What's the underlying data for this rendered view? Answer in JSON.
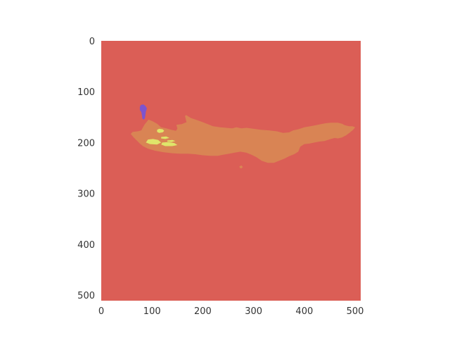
{
  "chart_data": {
    "type": "heatmap",
    "title": "",
    "xlabel": "",
    "ylabel": "",
    "xlim": [
      0,
      511
    ],
    "ylim": [
      511,
      0
    ],
    "grid": false,
    "x_ticks": [
      "0",
      "100",
      "200",
      "300",
      "400",
      "500"
    ],
    "y_ticks": [
      "0",
      "100",
      "200",
      "300",
      "400",
      "500"
    ],
    "x_tick_values": [
      0,
      100,
      200,
      300,
      400,
      500
    ],
    "y_tick_values": [
      0,
      100,
      200,
      300,
      400,
      500
    ],
    "background_class": {
      "label": "background",
      "color": "#db5e56"
    },
    "regions": [
      {
        "class": "main",
        "color": "#d98454",
        "polygon": [
          [
            58,
            183
          ],
          [
            62,
            179
          ],
          [
            72,
            178
          ],
          [
            79,
            176
          ],
          [
            85,
            165
          ],
          [
            93,
            155
          ],
          [
            101,
            158
          ],
          [
            110,
            163
          ],
          [
            118,
            170
          ],
          [
            128,
            172
          ],
          [
            138,
            175
          ],
          [
            147,
            177
          ],
          [
            150,
            173
          ],
          [
            148,
            165
          ],
          [
            158,
            164
          ],
          [
            168,
            160
          ],
          [
            165,
            148
          ],
          [
            167,
            146
          ],
          [
            177,
            152
          ],
          [
            186,
            155
          ],
          [
            200,
            160
          ],
          [
            210,
            164
          ],
          [
            220,
            168
          ],
          [
            234,
            170
          ],
          [
            246,
            171
          ],
          [
            258,
            172
          ],
          [
            266,
            170
          ],
          [
            276,
            172
          ],
          [
            286,
            171
          ],
          [
            300,
            173
          ],
          [
            315,
            175
          ],
          [
            330,
            176
          ],
          [
            346,
            178
          ],
          [
            358,
            181
          ],
          [
            370,
            180
          ],
          [
            378,
            176
          ],
          [
            388,
            174
          ],
          [
            400,
            170
          ],
          [
            412,
            168
          ],
          [
            422,
            166
          ],
          [
            432,
            164
          ],
          [
            442,
            162
          ],
          [
            452,
            161
          ],
          [
            466,
            161
          ],
          [
            474,
            163
          ],
          [
            480,
            166
          ],
          [
            488,
            168
          ],
          [
            495,
            168
          ],
          [
            500,
            170
          ],
          [
            496,
            175
          ],
          [
            490,
            180
          ],
          [
            482,
            186
          ],
          [
            474,
            190
          ],
          [
            466,
            192
          ],
          [
            460,
            191
          ],
          [
            452,
            193
          ],
          [
            440,
            197
          ],
          [
            430,
            198
          ],
          [
            420,
            200
          ],
          [
            410,
            202
          ],
          [
            400,
            203
          ],
          [
            392,
            208
          ],
          [
            388,
            218
          ],
          [
            380,
            223
          ],
          [
            370,
            227
          ],
          [
            360,
            232
          ],
          [
            350,
            236
          ],
          [
            340,
            240
          ],
          [
            328,
            240
          ],
          [
            316,
            236
          ],
          [
            306,
            229
          ],
          [
            296,
            224
          ],
          [
            286,
            220
          ],
          [
            274,
            218
          ],
          [
            262,
            220
          ],
          [
            252,
            222
          ],
          [
            240,
            224
          ],
          [
            230,
            226
          ],
          [
            215,
            226
          ],
          [
            200,
            225
          ],
          [
            185,
            223
          ],
          [
            170,
            222
          ],
          [
            155,
            222
          ],
          [
            140,
            221
          ],
          [
            122,
            219
          ],
          [
            106,
            216
          ],
          [
            92,
            212
          ],
          [
            82,
            207
          ],
          [
            76,
            202
          ],
          [
            70,
            196
          ],
          [
            64,
            190
          ]
        ]
      },
      {
        "class": "main-spot",
        "color": "#d98454",
        "polygon": [
          [
            272,
            247
          ],
          [
            276,
            245
          ],
          [
            279,
            248
          ],
          [
            276,
            251
          ],
          [
            273,
            250
          ]
        ]
      },
      {
        "class": "spine",
        "color": "#dfe56a",
        "polygon": [
          [
            110,
            175
          ],
          [
            114,
            173
          ],
          [
            121,
            174
          ],
          [
            124,
            177
          ],
          [
            121,
            180
          ],
          [
            114,
            181
          ],
          [
            110,
            179
          ]
        ]
      },
      {
        "class": "spine",
        "color": "#dfe56a",
        "polygon": [
          [
            92,
            194
          ],
          [
            102,
            193
          ],
          [
            112,
            195
          ],
          [
            118,
            200
          ],
          [
            110,
            204
          ],
          [
            96,
            203
          ],
          [
            88,
            200
          ]
        ]
      },
      {
        "class": "spine",
        "color": "#dfe56a",
        "polygon": [
          [
            120,
            200
          ],
          [
            132,
            199
          ],
          [
            144,
            201
          ],
          [
            150,
            205
          ],
          [
            140,
            207
          ],
          [
            126,
            207
          ],
          [
            118,
            204
          ]
        ]
      },
      {
        "class": "spine",
        "color": "#dfe56a",
        "polygon": [
          [
            118,
            189
          ],
          [
            128,
            188
          ],
          [
            134,
            191
          ],
          [
            126,
            193
          ],
          [
            118,
            192
          ]
        ]
      },
      {
        "class": "spine",
        "color": "#dfe56a",
        "polygon": [
          [
            130,
            196
          ],
          [
            140,
            195
          ],
          [
            146,
            197
          ],
          [
            138,
            199
          ],
          [
            130,
            198
          ]
        ]
      },
      {
        "class": "blob",
        "color": "#7d54cf",
        "polygon": [
          [
            76,
            130
          ],
          [
            78,
            126
          ],
          [
            83,
            125
          ],
          [
            87,
            128
          ],
          [
            90,
            133
          ],
          [
            88,
            139
          ],
          [
            87,
            146
          ],
          [
            86,
            152
          ],
          [
            84,
            155
          ],
          [
            81,
            153
          ],
          [
            80,
            146
          ],
          [
            79,
            140
          ],
          [
            76,
            136
          ]
        ]
      }
    ]
  }
}
